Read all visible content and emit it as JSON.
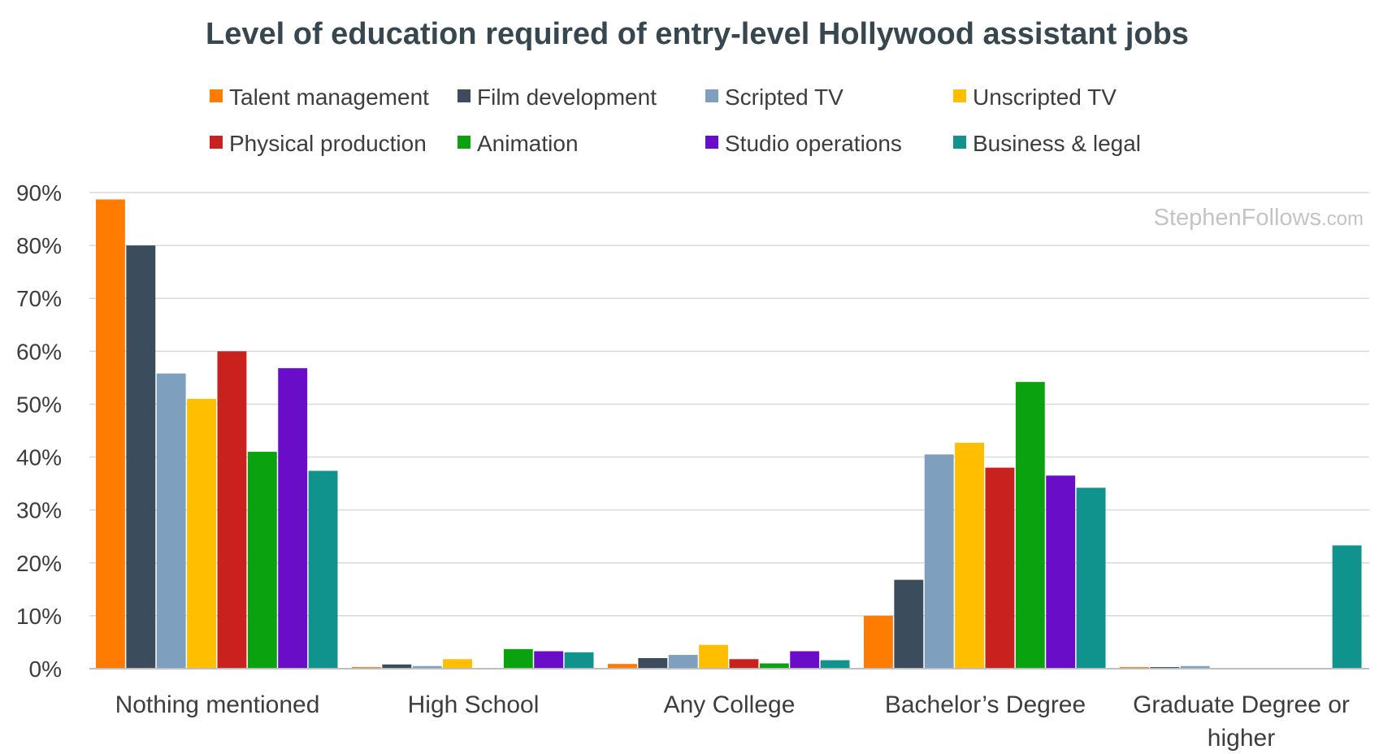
{
  "chart_data": {
    "type": "bar",
    "title": "Level of education required of entry-level Hollywood assistant jobs",
    "watermark": {
      "main": "StephenFollows",
      "domain": ".com"
    },
    "xlabel": "",
    "ylabel": "",
    "ylim": [
      0,
      90
    ],
    "yticks": [
      0,
      10,
      20,
      30,
      40,
      50,
      60,
      70,
      80,
      90
    ],
    "ytick_labels": [
      "0%",
      "10%",
      "20%",
      "30%",
      "40%",
      "50%",
      "60%",
      "70%",
      "80%",
      "90%"
    ],
    "grid": true,
    "legend_position": "top",
    "categories": [
      [
        "Nothing mentioned"
      ],
      [
        "High School"
      ],
      [
        "Any College"
      ],
      [
        "Bachelor’s Degree"
      ],
      [
        "Graduate Degree or",
        "higher"
      ]
    ],
    "series": [
      {
        "name": "Talent management",
        "color": "#ff7c00",
        "values": [
          88.7,
          0.3,
          0.9,
          10.0,
          0.3
        ]
      },
      {
        "name": "Film development",
        "color": "#3b4d5c",
        "values": [
          80.0,
          0.8,
          2.0,
          16.8,
          0.3
        ]
      },
      {
        "name": "Scripted TV",
        "color": "#7f9fbe",
        "values": [
          55.8,
          0.5,
          2.6,
          40.5,
          0.5
        ]
      },
      {
        "name": "Unscripted TV",
        "color": "#ffbe00",
        "values": [
          51.0,
          1.8,
          4.5,
          42.7,
          0.0
        ]
      },
      {
        "name": "Physical production",
        "color": "#c9211e",
        "values": [
          60.0,
          0.0,
          1.8,
          38.0,
          0.0
        ]
      },
      {
        "name": "Animation",
        "color": "#0aa20e",
        "values": [
          41.0,
          3.7,
          1.0,
          54.2,
          0.0
        ]
      },
      {
        "name": "Studio operations",
        "color": "#6a0dc9",
        "values": [
          56.8,
          3.3,
          3.3,
          36.5,
          0.0
        ]
      },
      {
        "name": "Business & legal",
        "color": "#11938d",
        "values": [
          37.4,
          3.1,
          1.6,
          34.2,
          23.3
        ]
      }
    ]
  }
}
